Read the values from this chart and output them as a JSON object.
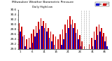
{
  "title": "Milwaukee Weather Barometric Pressure",
  "subtitle": "Daily High/Low",
  "high_color": "#cc0000",
  "low_color": "#0000cc",
  "legend_blue_label": "Lo",
  "legend_red_label": "Hi",
  "ylim": [
    29.0,
    30.6
  ],
  "yticks": [
    29.0,
    29.2,
    29.4,
    29.6,
    29.8,
    30.0,
    30.2,
    30.4,
    30.6
  ],
  "dashed_line_indices": [
    26,
    27,
    28,
    29
  ],
  "highs": [
    30.05,
    29.92,
    29.55,
    29.38,
    29.45,
    29.62,
    29.8,
    29.95,
    30.1,
    30.25,
    30.15,
    30.05,
    29.85,
    29.7,
    29.6,
    29.5,
    29.4,
    29.6,
    29.8,
    30.0,
    30.2,
    30.35,
    30.2,
    30.05,
    29.8,
    29.55,
    29.3,
    29.1,
    28.95,
    29.2,
    29.45,
    29.7,
    29.9,
    30.0,
    29.85,
    29.65,
    29.5
  ],
  "lows": [
    29.7,
    29.5,
    29.1,
    28.95,
    29.05,
    29.25,
    29.5,
    29.65,
    29.8,
    29.95,
    29.85,
    29.7,
    29.45,
    29.3,
    29.15,
    29.0,
    28.95,
    29.15,
    29.4,
    29.65,
    29.85,
    30.0,
    29.85,
    29.65,
    29.4,
    29.1,
    28.85,
    28.7,
    28.6,
    28.85,
    29.1,
    29.35,
    29.55,
    29.7,
    29.5,
    29.3,
    29.1
  ],
  "n_days": 37,
  "background_color": "#ffffff"
}
